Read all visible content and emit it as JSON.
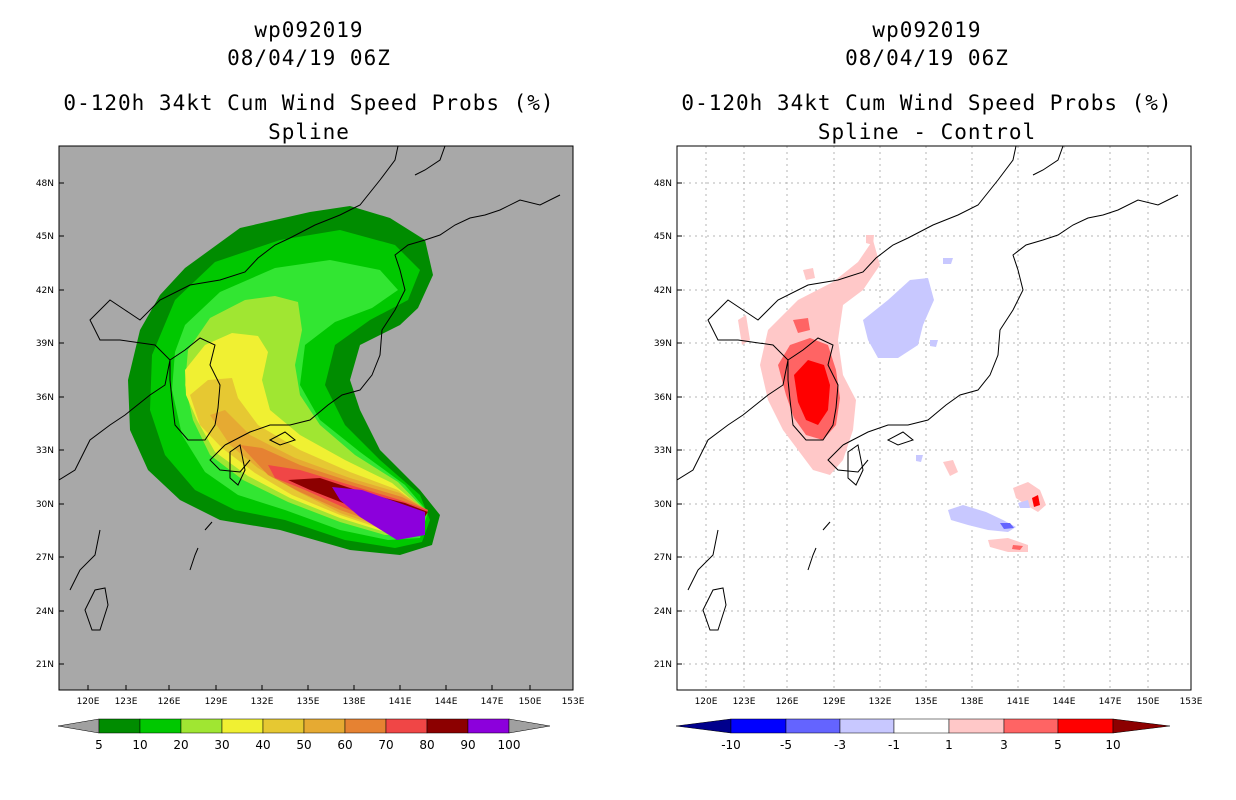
{
  "panels": [
    {
      "storm_id": "wp092019",
      "datetime": "08/04/19 06Z",
      "product": "0-120h 34kt Cum Wind Speed Probs (%)",
      "subtitle": "Spline",
      "lat_labels": [
        "48N",
        "45N",
        "42N",
        "39N",
        "36N",
        "33N",
        "30N",
        "27N",
        "24N",
        "21N"
      ],
      "lon_labels": [
        "120E",
        "123E",
        "126E",
        "129E",
        "132E",
        "135E",
        "138E",
        "141E",
        "144E",
        "147E",
        "150E",
        "153E"
      ],
      "colorbar": {
        "levels": [
          "5",
          "10",
          "20",
          "30",
          "40",
          "50",
          "60",
          "70",
          "80",
          "90",
          "100"
        ],
        "colors": [
          "#008c00",
          "#00c800",
          "#32e632",
          "#a0e632",
          "#f0f032",
          "#e6c832",
          "#e6aa32",
          "#e68232",
          "#f04646",
          "#8c0000",
          "#8c00dc"
        ],
        "end_color": "#a0a0a0"
      }
    },
    {
      "storm_id": "wp092019",
      "datetime": "08/04/19 06Z",
      "product": "0-120h 34kt Cum Wind Speed Probs (%)",
      "subtitle": "Spline - Control",
      "lat_labels": [
        "48N",
        "45N",
        "42N",
        "39N",
        "36N",
        "33N",
        "30N",
        "27N",
        "24N",
        "21N"
      ],
      "lon_labels": [
        "120E",
        "123E",
        "126E",
        "129E",
        "132E",
        "135E",
        "138E",
        "141E",
        "144E",
        "147E",
        "150E",
        "153E"
      ],
      "colorbar": {
        "levels": [
          "-10",
          "-5",
          "-3",
          "-1",
          "1",
          "3",
          "5",
          "10"
        ],
        "colors": [
          "#0000ff",
          "#6464ff",
          "#c8c8ff",
          "#ffffff",
          "#ffc8c8",
          "#ff6464",
          "#ff0000"
        ],
        "end_colors": [
          "#00008c",
          "#8c0000"
        ]
      }
    }
  ]
}
